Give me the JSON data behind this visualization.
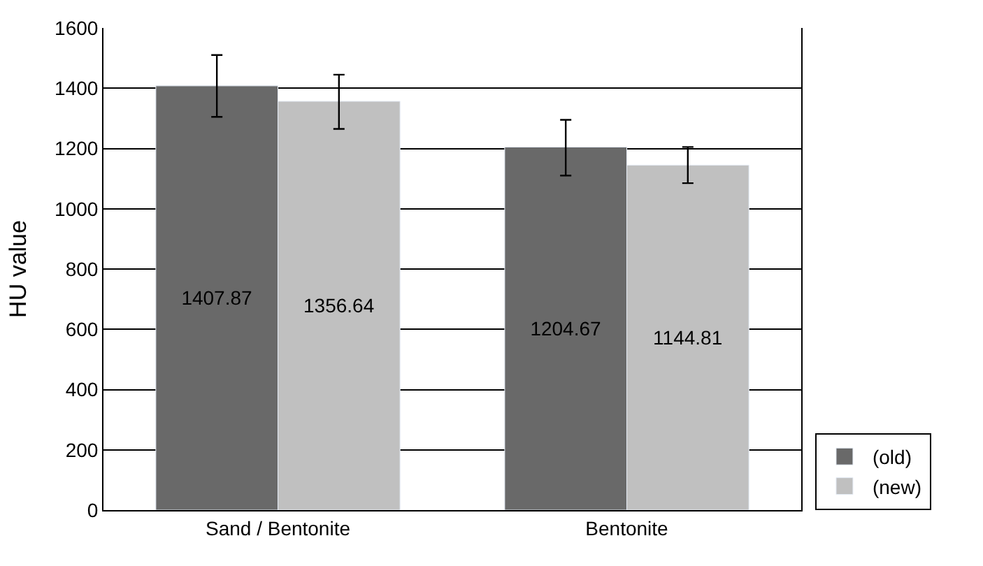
{
  "chart_data": {
    "type": "bar",
    "ylabel": "HU value",
    "categories": [
      "Sand / Bentonite",
      "Bentonite"
    ],
    "series": [
      {
        "name": "(old)",
        "color": "#696969",
        "values": [
          1407.87,
          1204.67
        ],
        "errors": [
          [
            1305,
            1510
          ],
          [
            1110,
            1295
          ]
        ]
      },
      {
        "name": "(new)",
        "color": "#c0c0c0",
        "values": [
          1356.64,
          1144.81
        ],
        "errors": [
          [
            1265,
            1445
          ],
          [
            1085,
            1205
          ]
        ]
      }
    ],
    "ylim": [
      0,
      1600
    ],
    "yticks": [
      0,
      200,
      400,
      600,
      800,
      1000,
      1200,
      1400,
      1600
    ],
    "grid": "y",
    "legend": "right",
    "data_labels": true
  }
}
